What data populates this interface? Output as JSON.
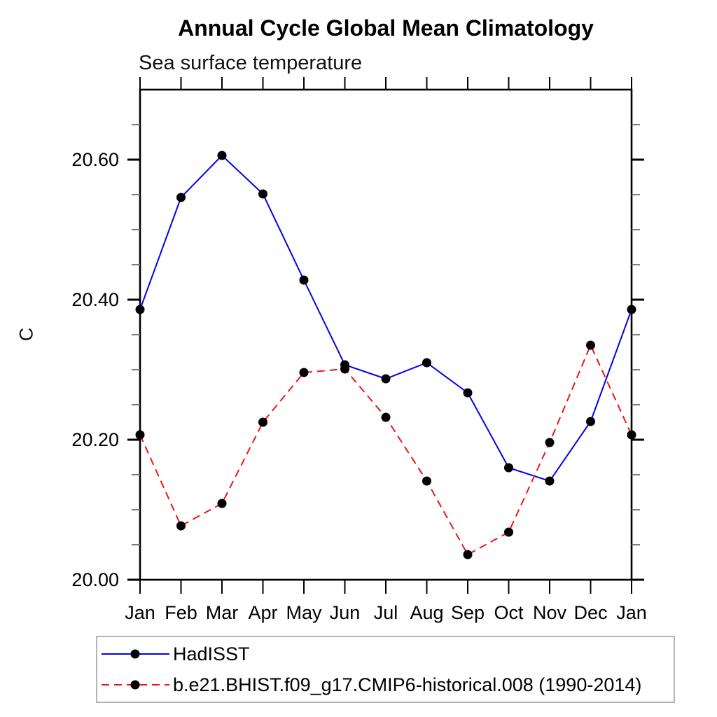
{
  "page": {
    "background": "#ffffff"
  },
  "header": {
    "title": "Annual Cycle Global Mean Climatology",
    "subtitle": "Sea surface temperature"
  },
  "chart_data": {
    "type": "line",
    "title": "Annual Cycle Global Mean Climatology",
    "subtitle": "Sea surface temperature",
    "xlabel": "",
    "ylabel": "C",
    "grid": false,
    "legend_position": "bottom-left-box",
    "categories": [
      "Jan",
      "Feb",
      "Mar",
      "Apr",
      "May",
      "Jun",
      "Jul",
      "Aug",
      "Sep",
      "Oct",
      "Nov",
      "Dec",
      "Jan"
    ],
    "ylim": [
      20.0,
      20.7
    ],
    "y_minor_step": 0.05,
    "y_major_ticks": [
      {
        "value": 20.0,
        "label": "20.00"
      },
      {
        "value": 20.2,
        "label": "20.20"
      },
      {
        "value": 20.4,
        "label": "20.40"
      },
      {
        "value": 20.6,
        "label": "20.60"
      }
    ],
    "series": [
      {
        "name": "HadISST",
        "color": "#0202e8",
        "style": "solid",
        "marker": "circle",
        "marker_color": "#000000",
        "values": [
          20.386,
          20.546,
          20.606,
          20.551,
          20.428,
          20.307,
          20.287,
          20.31,
          20.267,
          20.16,
          20.141,
          20.226,
          20.386
        ]
      },
      {
        "name": "b.e21.BHIST.f09_g17.CMIP6-historical.008 (1990-2014)",
        "color": "#f01414",
        "style": "dashed",
        "marker": "circle",
        "marker_color": "#000000",
        "values": [
          20.207,
          20.077,
          20.109,
          20.225,
          20.296,
          20.301,
          20.232,
          20.141,
          20.036,
          20.068,
          20.196,
          20.335,
          20.207
        ]
      }
    ],
    "colors": {
      "axis": "#000000",
      "minor_tick": "#6e6e6e",
      "legend_border": "#b4b4b4",
      "text": "#000000"
    }
  }
}
